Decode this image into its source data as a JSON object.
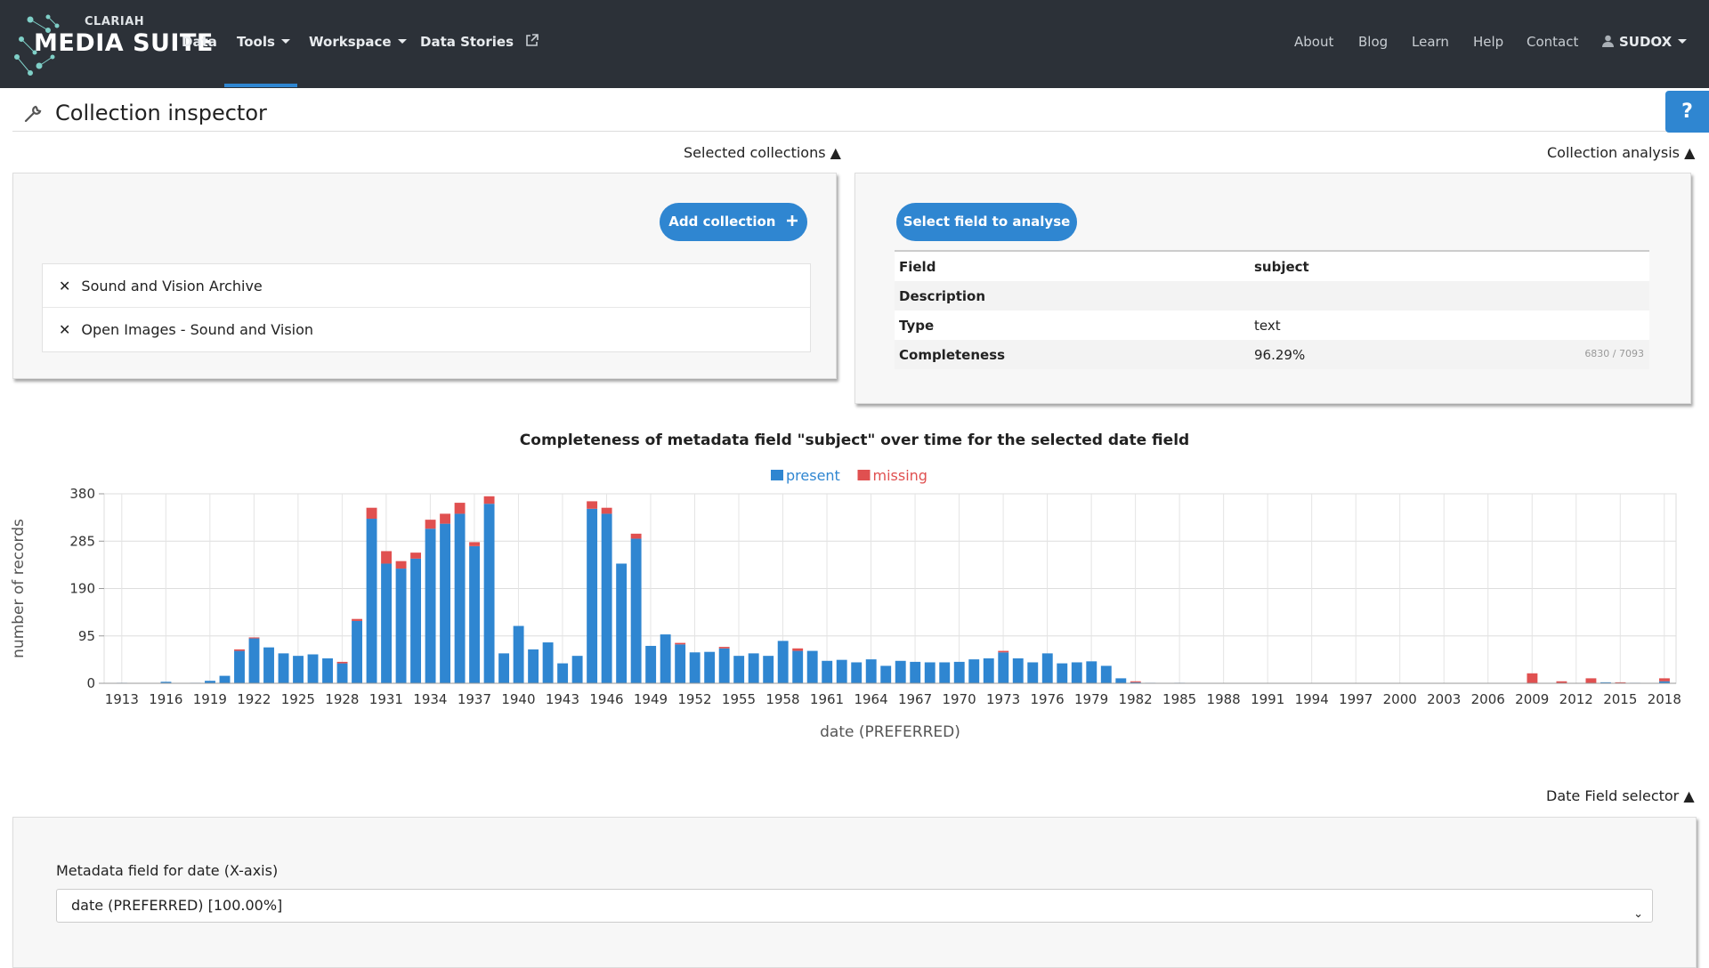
{
  "brand": {
    "small": "CLARIAH",
    "big": "MEDIA SUITE"
  },
  "nav": {
    "left": [
      {
        "label": "Data"
      },
      {
        "label": "Tools"
      },
      {
        "label": "Workspace"
      },
      {
        "label": "Data Stories"
      }
    ],
    "right": [
      {
        "label": "About"
      },
      {
        "label": "Blog"
      },
      {
        "label": "Learn"
      },
      {
        "label": "Help"
      },
      {
        "label": "Contact"
      },
      {
        "label": "SUDOX"
      }
    ]
  },
  "page": {
    "title": "Collection inspector",
    "help": "?"
  },
  "sections": {
    "selected": "Selected collections ▲",
    "analysis": "Collection analysis ▲",
    "date_selector": "Date Field selector ▲"
  },
  "collections": {
    "add_label": "Add collection",
    "items": [
      {
        "label": "Sound and Vision Archive"
      },
      {
        "label": "Open Images - Sound and Vision"
      }
    ]
  },
  "analysis": {
    "select_label": "Select field to analyse",
    "rows": [
      {
        "key": "Field",
        "value": "subject"
      },
      {
        "key": "Description",
        "value": ""
      },
      {
        "key": "Type",
        "value": "text"
      },
      {
        "key": "Completeness",
        "value": "96.29%",
        "note": "6830 / 7093"
      }
    ]
  },
  "date_field": {
    "label": "Metadata field for date (X-axis)",
    "selected": "date (PREFERRED) [100.00%]"
  },
  "colors": {
    "present": "#2f86d1",
    "missing": "#e05050",
    "nav_bg": "#2c3138"
  },
  "chart_data": {
    "type": "bar",
    "stacked": true,
    "title": "Completeness of metadata field \"subject\" over time for the selected date field",
    "xlabel": "date (PREFERRED)",
    "ylabel": "number of records",
    "ylim": [
      0,
      380
    ],
    "yticks": [
      0,
      95,
      190,
      285,
      380
    ],
    "grid": true,
    "legend_position": "top",
    "x_start": 1913,
    "x_end": 2018,
    "xtick_labels": [
      "1913",
      "1916",
      "1919",
      "1922",
      "1925",
      "1928",
      "1931",
      "1934",
      "1937",
      "1940",
      "1943",
      "1946",
      "1949",
      "1952",
      "1955",
      "1958",
      "1961",
      "1964",
      "1967",
      "1970",
      "1973",
      "1976",
      "1979",
      "1982",
      "1985",
      "1988",
      "1991",
      "1994",
      "1997",
      "2000",
      "2003",
      "2006",
      "2009",
      "2012",
      "2015",
      "2018"
    ],
    "series": [
      {
        "name": "present",
        "color": "#2f86d1",
        "values": [
          1,
          0,
          0,
          3,
          0,
          1,
          5,
          15,
          65,
          90,
          72,
          60,
          55,
          58,
          50,
          40,
          125,
          330,
          240,
          230,
          250,
          310,
          320,
          340,
          275,
          360,
          60,
          115,
          68,
          82,
          40,
          55,
          350,
          340,
          240,
          290,
          75,
          98,
          78,
          62,
          63,
          70,
          55,
          60,
          55,
          85,
          65,
          65,
          45,
          47,
          42,
          48,
          35,
          45,
          43,
          42,
          42,
          43,
          48,
          50,
          62,
          50,
          42,
          60,
          40,
          42,
          44,
          35,
          10,
          2,
          1,
          0,
          1,
          0,
          0,
          0,
          0,
          0,
          0,
          0,
          0,
          0,
          0,
          0,
          0,
          0,
          0,
          0,
          0,
          0,
          0,
          0,
          0,
          0,
          0,
          0,
          0,
          0,
          0,
          0,
          0,
          2,
          0,
          1,
          0,
          4
        ]
      },
      {
        "name": "missing",
        "color": "#e05050",
        "values": [
          0,
          0,
          0,
          0,
          0,
          0,
          0,
          0,
          3,
          2,
          0,
          0,
          0,
          0,
          0,
          3,
          4,
          22,
          25,
          15,
          12,
          18,
          20,
          22,
          8,
          15,
          0,
          0,
          0,
          0,
          0,
          0,
          15,
          12,
          0,
          10,
          0,
          0,
          3,
          0,
          0,
          3,
          0,
          0,
          0,
          0,
          5,
          0,
          0,
          0,
          0,
          0,
          0,
          0,
          0,
          0,
          0,
          0,
          0,
          0,
          3,
          0,
          0,
          0,
          0,
          0,
          0,
          0,
          0,
          2,
          0,
          0,
          0,
          0,
          0,
          0,
          0,
          0,
          0,
          0,
          0,
          0,
          0,
          0,
          0,
          0,
          0,
          0,
          0,
          0,
          0,
          0,
          0,
          0,
          0,
          0,
          20,
          0,
          4,
          0,
          10,
          0,
          2,
          0,
          0,
          6
        ]
      }
    ]
  }
}
